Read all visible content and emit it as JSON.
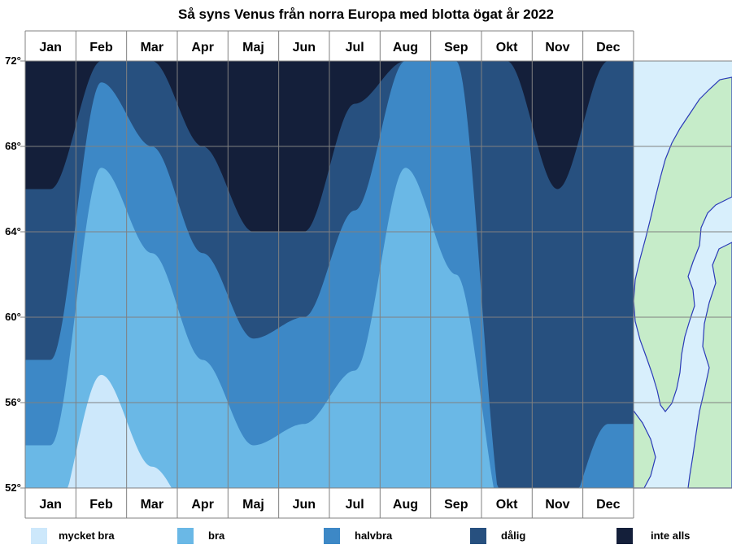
{
  "title": "Så syns Venus från norra Europa med blotta ögat år 2022",
  "months": [
    "Jan",
    "Feb",
    "Mar",
    "Apr",
    "Maj",
    "Jun",
    "Jul",
    "Aug",
    "Sep",
    "Okt",
    "Nov",
    "Dec"
  ],
  "lat_ticks": [
    "72°",
    "68°",
    "64°",
    "60°",
    "56°",
    "52°"
  ],
  "legend": [
    {
      "label": "mycket bra",
      "color": "#cde8fb"
    },
    {
      "label": "bra",
      "color": "#6ab8e6"
    },
    {
      "label": "halvbra",
      "color": "#3d88c6"
    },
    {
      "label": "dålig",
      "color": "#27507f"
    },
    {
      "label": "inte alls",
      "color": "#141f3a"
    }
  ],
  "chart_data": {
    "type": "heatmap",
    "title": "Så syns Venus från norra Europa med blotta ögat år 2022",
    "x_categories": [
      "Jan",
      "Feb",
      "Mar",
      "Apr",
      "Maj",
      "Jun",
      "Jul",
      "Aug",
      "Sep",
      "Okt",
      "Nov",
      "Dec"
    ],
    "y_ticks": [
      72,
      68,
      64,
      60,
      56,
      52
    ],
    "ylim": [
      52,
      72
    ],
    "levels": [
      "mycket bra",
      "bra",
      "halvbra",
      "dålig",
      "inte alls"
    ],
    "grid": true,
    "legend_position": "bottom",
    "boundaries_latitude": {
      "note": "latitude below which visibility is at least the given level, per month",
      "mycket bra": [
        50,
        57.3,
        53,
        50,
        50,
        50,
        50,
        50,
        50,
        50,
        50,
        50
      ],
      "bra": [
        54,
        67,
        63,
        58,
        54,
        55,
        57.5,
        67,
        62,
        50,
        50,
        50
      ],
      "halvbra": [
        58,
        71,
        68,
        63,
        59,
        60,
        65,
        72,
        72,
        50,
        50,
        55
      ],
      "dålig": [
        66,
        72,
        72,
        68,
        64,
        64,
        70,
        72,
        72,
        72,
        66,
        72
      ]
    }
  }
}
